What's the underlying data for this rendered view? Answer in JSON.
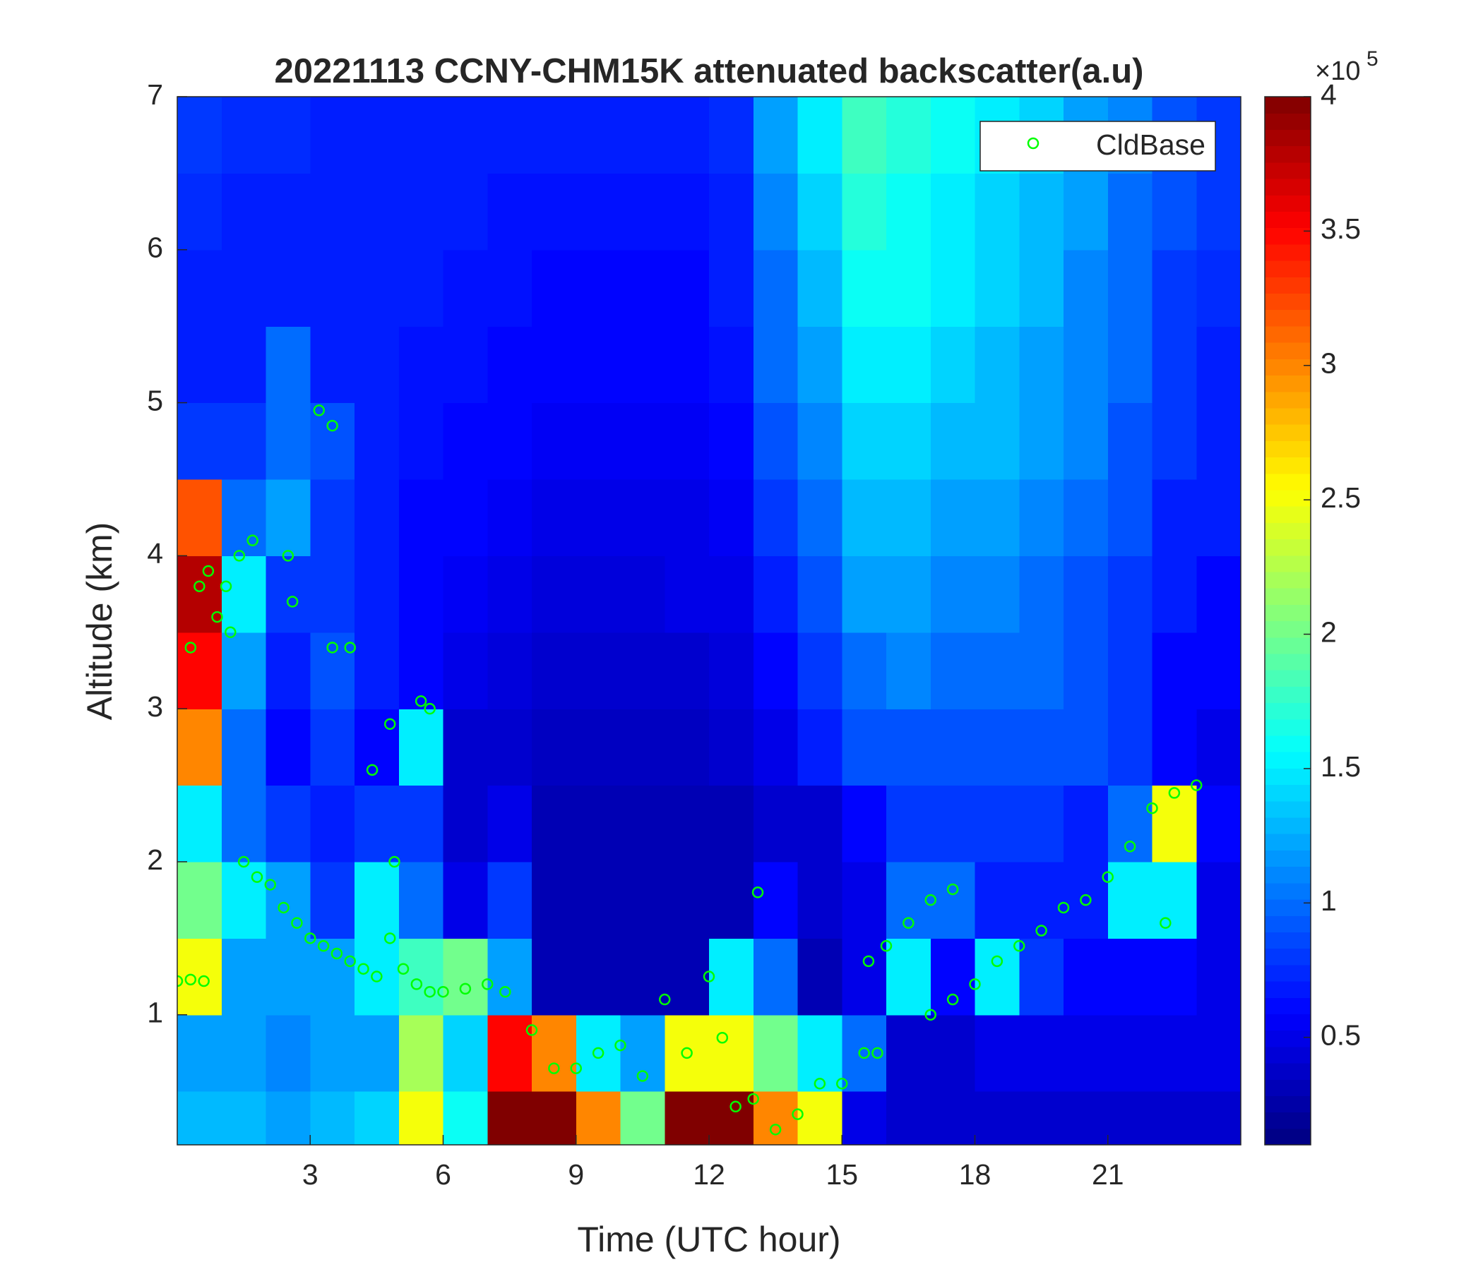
{
  "chart_data": {
    "type": "heatmap",
    "title": "20221113 CCNY-CHM15K attenuated backscatter(a.u)",
    "x_label": "Time (UTC hour)",
    "y_label": "Altitude (km)",
    "xlim": [
      0,
      24
    ],
    "ylim": [
      0.15,
      7
    ],
    "xticks": [
      3,
      6,
      9,
      12,
      15,
      18,
      21
    ],
    "yticks": [
      1,
      2,
      3,
      4,
      5,
      6,
      7
    ],
    "colormap": "jet",
    "clim": [
      0.1,
      4
    ],
    "colorbar_ticks": [
      0.5,
      1,
      1.5,
      2,
      2.5,
      3,
      3.5,
      4
    ],
    "colorbar_multiplier": "×10",
    "colorbar_exponent": "5",
    "x_edges": [
      0,
      1,
      2,
      3,
      4,
      5,
      6,
      7,
      8,
      9,
      10,
      11,
      12,
      13,
      14,
      15,
      16,
      17,
      18,
      19,
      20,
      21,
      22,
      23,
      24
    ],
    "y_edges": [
      0.15,
      0.5,
      1,
      1.5,
      2,
      2.5,
      3,
      3.5,
      4,
      4.5,
      5,
      5.5,
      6,
      6.5,
      7
    ],
    "z": [
      [
        1.3,
        1.3,
        1.2,
        1.3,
        1.4,
        2.5,
        1.6,
        4,
        4,
        3,
        2,
        4,
        4,
        3,
        2.5,
        0.5,
        0.4,
        0.4,
        0.4,
        0.4,
        0.4,
        0.4,
        0.4,
        0.4
      ],
      [
        1.2,
        1.2,
        1.1,
        1.2,
        1.2,
        2.2,
        1.4,
        3.5,
        3,
        1.5,
        1.2,
        2.5,
        2.5,
        2,
        1.5,
        1,
        0.4,
        0.4,
        0.5,
        0.5,
        0.5,
        0.5,
        0.5,
        0.5
      ],
      [
        2.5,
        1.2,
        1.2,
        1.2,
        1.5,
        1.8,
        2,
        1.2,
        0.3,
        0.3,
        0.3,
        0.3,
        1.5,
        1,
        0.3,
        0.5,
        1.5,
        0.6,
        1.5,
        0.8,
        0.6,
        0.6,
        0.6,
        0.5
      ],
      [
        2,
        1.5,
        1.2,
        0.8,
        1.5,
        1,
        0.5,
        0.8,
        0.3,
        0.3,
        0.3,
        0.3,
        0.3,
        0.6,
        0.4,
        0.5,
        1,
        1,
        0.7,
        0.7,
        0.7,
        1.5,
        1.5,
        0.5
      ],
      [
        1.5,
        1,
        0.8,
        0.7,
        0.8,
        0.8,
        0.4,
        0.5,
        0.3,
        0.3,
        0.3,
        0.3,
        0.3,
        0.4,
        0.4,
        0.6,
        0.8,
        0.8,
        0.8,
        0.8,
        0.7,
        1,
        2.5,
        0.6
      ],
      [
        3,
        1,
        0.6,
        0.8,
        0.6,
        1.5,
        0.4,
        0.4,
        0.35,
        0.35,
        0.35,
        0.35,
        0.4,
        0.5,
        0.7,
        0.9,
        0.9,
        0.9,
        0.9,
        0.9,
        0.9,
        0.8,
        0.6,
        0.5
      ],
      [
        3.5,
        1.2,
        0.7,
        0.9,
        0.7,
        0.6,
        0.5,
        0.45,
        0.4,
        0.4,
        0.4,
        0.4,
        0.45,
        0.6,
        0.8,
        1,
        1.1,
        1,
        1,
        1,
        0.9,
        0.8,
        0.6,
        0.6
      ],
      [
        3.8,
        1.5,
        0.8,
        0.8,
        0.7,
        0.6,
        0.55,
        0.5,
        0.45,
        0.45,
        0.45,
        0.5,
        0.5,
        0.7,
        0.9,
        1.2,
        1.2,
        1.1,
        1.1,
        1,
        0.9,
        0.8,
        0.7,
        0.6
      ],
      [
        3.2,
        1,
        1.2,
        0.8,
        0.7,
        0.6,
        0.6,
        0.55,
        0.5,
        0.5,
        0.5,
        0.5,
        0.55,
        0.8,
        1,
        1.3,
        1.3,
        1.2,
        1.2,
        1.1,
        1,
        0.9,
        0.7,
        0.7
      ],
      [
        0.8,
        0.8,
        1,
        0.9,
        0.7,
        0.65,
        0.6,
        0.6,
        0.55,
        0.55,
        0.55,
        0.55,
        0.6,
        0.9,
        1.1,
        1.4,
        1.4,
        1.3,
        1.3,
        1.2,
        1.1,
        0.9,
        0.8,
        0.7
      ],
      [
        0.7,
        0.7,
        1,
        0.7,
        0.7,
        0.65,
        0.65,
        0.6,
        0.6,
        0.6,
        0.6,
        0.6,
        0.65,
        1,
        1.2,
        1.5,
        1.5,
        1.4,
        1.3,
        1.2,
        1.1,
        1,
        0.8,
        0.7
      ],
      [
        0.7,
        0.7,
        0.7,
        0.7,
        0.7,
        0.7,
        0.65,
        0.65,
        0.6,
        0.6,
        0.6,
        0.6,
        0.7,
        1,
        1.3,
        1.6,
        1.6,
        1.5,
        1.4,
        1.3,
        1.1,
        1,
        0.8,
        0.75
      ],
      [
        0.75,
        0.7,
        0.7,
        0.7,
        0.7,
        0.7,
        0.7,
        0.65,
        0.65,
        0.65,
        0.65,
        0.65,
        0.7,
        1.1,
        1.4,
        1.7,
        1.6,
        1.5,
        1.4,
        1.3,
        1.2,
        1,
        0.9,
        0.8
      ],
      [
        0.8,
        0.75,
        0.75,
        0.7,
        0.7,
        0.7,
        0.7,
        0.7,
        0.7,
        0.7,
        0.7,
        0.7,
        0.75,
        1.2,
        1.5,
        1.8,
        1.7,
        1.6,
        1.5,
        1.4,
        1.2,
        1.1,
        0.9,
        0.8
      ]
    ],
    "legend": "northeast",
    "series": [
      {
        "name": "CldBase",
        "color": "#00ff00",
        "marker": "circle",
        "x": [
          0,
          0.3,
          0.6,
          0.3,
          0.5,
          0.7,
          0.9,
          1.1,
          1.4,
          1.7,
          1.2,
          1.5,
          1.8,
          2.1,
          2.4,
          2.7,
          3,
          3.3,
          3.6,
          3.9,
          4.2,
          4.5,
          4.8,
          5.1,
          5.4,
          5.7,
          6,
          6.5,
          7,
          7.4,
          2.5,
          2.6,
          3.2,
          3.5,
          3.5,
          3.9,
          4.4,
          4.8,
          4.9,
          5.5,
          5.7,
          8,
          8.5,
          9,
          9.5,
          10,
          10.5,
          11,
          11.5,
          12,
          12.3,
          12.6,
          13,
          13.1,
          13.5,
          14,
          14.5,
          15,
          15.5,
          15.8,
          15.6,
          16,
          16.5,
          17,
          17.5,
          17,
          17.5,
          18,
          18.5,
          19,
          19.5,
          20,
          20.5,
          21,
          21.5,
          22,
          22.5,
          23,
          22.3
        ],
        "y": [
          1.22,
          1.23,
          1.22,
          3.4,
          3.8,
          3.9,
          3.6,
          3.8,
          4,
          4.1,
          3.5,
          2,
          1.9,
          1.85,
          1.7,
          1.6,
          1.5,
          1.45,
          1.4,
          1.35,
          1.3,
          1.25,
          1.5,
          1.3,
          1.2,
          1.15,
          1.15,
          1.17,
          1.2,
          1.15,
          4,
          3.7,
          4.95,
          4.85,
          3.4,
          3.4,
          2.6,
          2.9,
          2,
          3.05,
          3,
          0.9,
          0.65,
          0.65,
          0.75,
          0.8,
          0.6,
          1.1,
          0.75,
          1.25,
          0.85,
          0.4,
          0.45,
          1.8,
          0.25,
          0.35,
          0.55,
          0.55,
          0.75,
          0.75,
          1.35,
          1.45,
          1.6,
          1.75,
          1.82,
          1,
          1.1,
          1.2,
          1.35,
          1.45,
          1.55,
          1.7,
          1.75,
          1.9,
          2.1,
          2.35,
          2.45,
          2.5,
          1.6
        ]
      }
    ]
  }
}
